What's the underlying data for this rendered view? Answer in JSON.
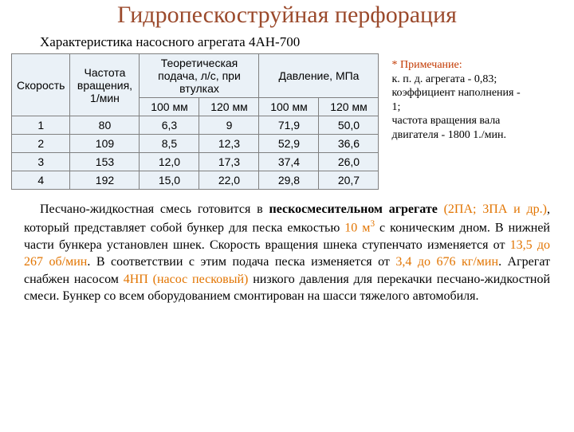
{
  "title": "Гидропескоструйная перфорация",
  "subtitle": "Характеристика насосного агрегата 4АН-700",
  "table": {
    "headers": {
      "speed": "Скорость",
      "frequency": "Частота вращения, 1/мин",
      "feed": "Теоретическая подача, л/с, при втулках",
      "pressure": "Давление, МПа",
      "col100": "100 мм",
      "col120": "120 мм"
    },
    "rows": [
      {
        "n": "1",
        "freq": "80",
        "f100": "6,3",
        "f120": "9",
        "p100": "71,9",
        "p120": "50,0"
      },
      {
        "n": "2",
        "freq": "109",
        "f100": "8,5",
        "f120": "12,3",
        "p100": "52,9",
        "p120": "36,6"
      },
      {
        "n": "3",
        "freq": "153",
        "f100": "12,0",
        "f120": "17,3",
        "p100": "37,4",
        "p120": "26,0"
      },
      {
        "n": "4",
        "freq": "192",
        "f100": "15,0",
        "f120": "22,0",
        "p100": "29,8",
        "p120": "20,7"
      }
    ]
  },
  "note": {
    "star": "* Примечание:",
    "line1": "к. п. д. агрегата - 0,83;",
    "line2": "коэффициент наполнения - 1;",
    "line3": "частота вращения вала двигателя  -  1800 1./мин."
  },
  "body": {
    "s1a": "Песчано-жидкостная смесь готовится в ",
    "s1b": "пескосмесительном агрегате",
    "s1c": " (",
    "s1d": "2ПА; 3ПА и др.",
    "s1e": "), который представляет собой бункер для песка емкостью ",
    "s1f": "10 м",
    "s1g": " с коническим дном. В нижней части бункера установлен шнек. Скорость вращения шнека ступенчато изменяется от ",
    "s1h": "13,5 до 267 об/мин",
    "s1i": ". В соответствии с этим подача песка изменяется от ",
    "s1j": "3,4 до 676 кг/мин",
    "s1k": ". Агрегат снабжен насосом ",
    "s1l": "4НП (насос песковый)",
    "s1m": " низкого давления для перекачки песчано-жидкостной смеси. Бункер со всем оборудованием смонтирован на шасси тяжелого автомобиля."
  }
}
